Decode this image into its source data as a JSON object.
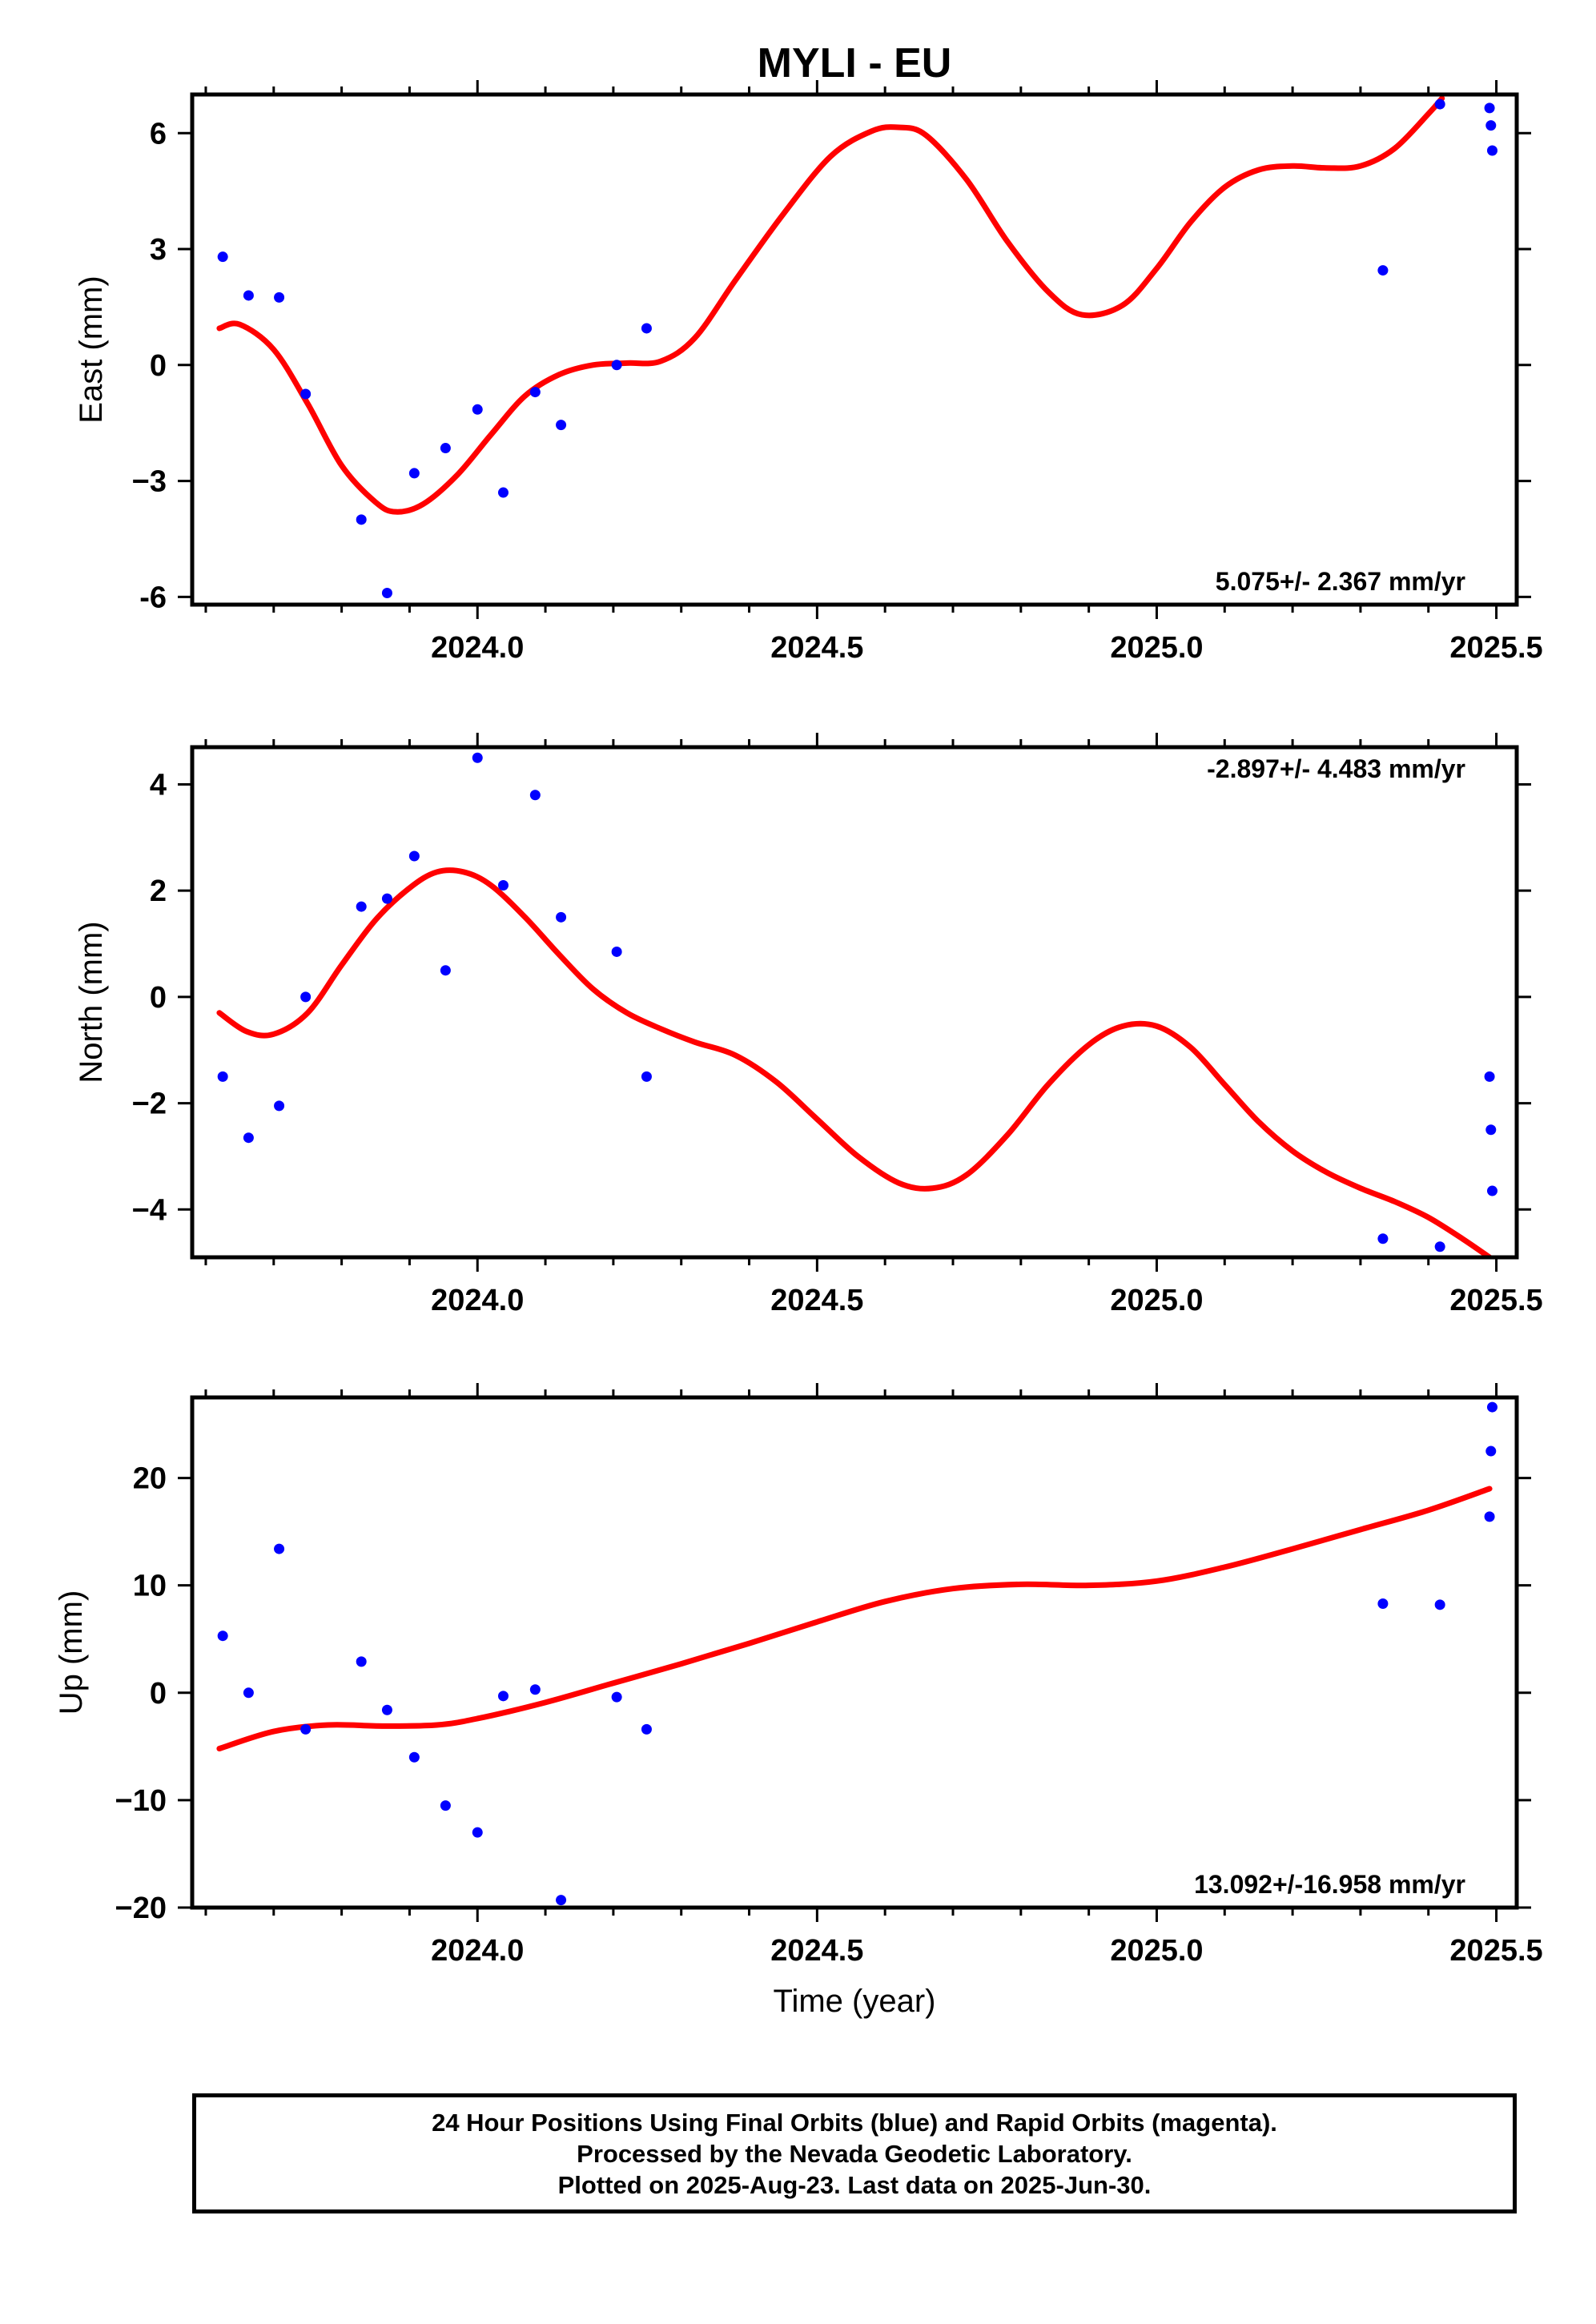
{
  "title": "MYLI - EU",
  "caption": {
    "line1": "24 Hour Positions Using Final Orbits (blue) and Rapid Orbits (magenta).",
    "line2": "Processed by the Nevada Geodetic Laboratory.",
    "line3": "Plotted on 2025-Aug-23. Last data on 2025-Jun-30."
  },
  "colors": {
    "final_orbits": "#0000ff",
    "fit_curve": "#ff0000",
    "frame": "#000000"
  },
  "chart_data": [
    {
      "type": "scatter",
      "id": "east",
      "ylabel": "East (mm)",
      "xlabel": "",
      "rate": "5.075+/- 2.367 mm/yr",
      "rate_position": "bottom-right",
      "xlim": [
        2023.58,
        2025.53
      ],
      "ylim": [
        -6.2,
        7.0
      ],
      "xticks": [
        2024.0,
        2024.5,
        2025.0,
        2025.5
      ],
      "xtick_labels": [
        "2024.0",
        "2024.5",
        "2025.0",
        "2025.5"
      ],
      "yticks": [
        -6,
        -3,
        0,
        3,
        6
      ],
      "ytick_labels": [
        "-6",
        "−3",
        "0",
        "3",
        "6"
      ],
      "grid": false,
      "points": {
        "x": [
          2023.625,
          2023.663,
          2023.708,
          2023.747,
          2023.829,
          2023.867,
          2023.907,
          2023.953,
          2024.0,
          2024.038,
          2024.085,
          2024.123,
          2024.205,
          2024.249,
          2025.333,
          2025.417,
          2025.49,
          2025.492,
          2025.494
        ],
        "y": [
          2.8,
          1.8,
          1.75,
          -0.75,
          -4.0,
          -5.9,
          -2.8,
          -2.15,
          -1.15,
          -3.3,
          -0.7,
          -1.55,
          0.0,
          0.95,
          2.45,
          6.75,
          6.65,
          6.2,
          5.55
        ]
      },
      "fit": {
        "x": [
          2023.62,
          2023.65,
          2023.7,
          2023.75,
          2023.8,
          2023.85,
          2023.88,
          2023.92,
          2023.97,
          2024.02,
          2024.07,
          2024.12,
          2024.17,
          2024.22,
          2024.27,
          2024.32,
          2024.38,
          2024.45,
          2024.52,
          2024.58,
          2024.62,
          2024.66,
          2024.72,
          2024.78,
          2024.84,
          2024.89,
          2024.95,
          2025.0,
          2025.05,
          2025.1,
          2025.15,
          2025.2,
          2025.25,
          2025.3,
          2025.35,
          2025.4,
          2025.42
        ],
        "y": [
          0.95,
          1.05,
          0.4,
          -1.0,
          -2.6,
          -3.55,
          -3.8,
          -3.6,
          -2.85,
          -1.8,
          -0.8,
          -0.25,
          0.0,
          0.05,
          0.1,
          0.7,
          2.2,
          3.9,
          5.4,
          6.05,
          6.15,
          5.95,
          4.8,
          3.2,
          1.9,
          1.3,
          1.55,
          2.5,
          3.7,
          4.6,
          5.05,
          5.15,
          5.1,
          5.15,
          5.6,
          6.5,
          6.9
        ]
      }
    },
    {
      "type": "scatter",
      "id": "north",
      "ylabel": "North (mm)",
      "xlabel": "",
      "rate": "-2.897+/- 4.483 mm/yr",
      "rate_position": "top-right",
      "xlim": [
        2023.58,
        2025.53
      ],
      "ylim": [
        -4.9,
        4.7
      ],
      "xticks": [
        2024.0,
        2024.5,
        2025.0,
        2025.5
      ],
      "xtick_labels": [
        "2024.0",
        "2024.5",
        "2025.0",
        "2025.5"
      ],
      "yticks": [
        -4,
        -2,
        0,
        2,
        4
      ],
      "ytick_labels": [
        "−4",
        "−2",
        "0",
        "2",
        "4"
      ],
      "grid": false,
      "points": {
        "x": [
          2023.625,
          2023.663,
          2023.708,
          2023.747,
          2023.829,
          2023.867,
          2023.907,
          2023.953,
          2024.0,
          2024.038,
          2024.085,
          2024.123,
          2024.205,
          2024.249,
          2025.333,
          2025.417,
          2025.49,
          2025.492,
          2025.494
        ],
        "y": [
          -1.5,
          -2.65,
          -2.05,
          0.0,
          1.7,
          1.85,
          2.65,
          0.5,
          4.5,
          2.1,
          3.8,
          1.5,
          0.85,
          -1.5,
          -4.55,
          -4.7,
          -1.5,
          -2.5,
          -3.65
        ]
      },
      "fit": {
        "x": [
          2023.62,
          2023.66,
          2023.7,
          2023.75,
          2023.8,
          2023.85,
          2023.9,
          2023.94,
          2023.98,
          2024.02,
          2024.07,
          2024.12,
          2024.17,
          2024.22,
          2024.27,
          2024.32,
          2024.38,
          2024.44,
          2024.5,
          2024.56,
          2024.62,
          2024.67,
          2024.72,
          2024.78,
          2024.84,
          2024.9,
          2024.95,
          2025.0,
          2025.05,
          2025.1,
          2025.15,
          2025.2,
          2025.25,
          2025.3,
          2025.35,
          2025.4,
          2025.45,
          2025.49
        ],
        "y": [
          -0.3,
          -0.65,
          -0.7,
          -0.3,
          0.6,
          1.45,
          2.05,
          2.35,
          2.35,
          2.1,
          1.5,
          0.8,
          0.15,
          -0.3,
          -0.6,
          -0.85,
          -1.1,
          -1.6,
          -2.3,
          -3.0,
          -3.5,
          -3.6,
          -3.35,
          -2.6,
          -1.65,
          -0.9,
          -0.55,
          -0.55,
          -0.95,
          -1.65,
          -2.35,
          -2.9,
          -3.3,
          -3.6,
          -3.85,
          -4.15,
          -4.55,
          -4.9
        ]
      }
    },
    {
      "type": "scatter",
      "id": "up",
      "ylabel": "Up (mm)",
      "xlabel": "Time (year)",
      "rate": "13.092+/-16.958 mm/yr",
      "rate_position": "bottom-right",
      "xlim": [
        2023.58,
        2025.53
      ],
      "ylim": [
        -20,
        27.5
      ],
      "xticks": [
        2024.0,
        2024.5,
        2025.0,
        2025.5
      ],
      "xtick_labels": [
        "2024.0",
        "2024.5",
        "2025.0",
        "2025.5"
      ],
      "yticks": [
        -20,
        -10,
        0,
        10,
        20
      ],
      "ytick_labels": [
        "−20",
        "−10",
        "0",
        "10",
        "20"
      ],
      "grid": false,
      "points": {
        "x": [
          2023.625,
          2023.663,
          2023.708,
          2023.747,
          2023.829,
          2023.867,
          2023.907,
          2023.953,
          2024.0,
          2024.038,
          2024.085,
          2024.123,
          2024.205,
          2024.249,
          2025.333,
          2025.417,
          2025.49,
          2025.492,
          2025.494
        ],
        "y": [
          5.3,
          0.0,
          13.4,
          -3.4,
          2.9,
          -1.6,
          -6.0,
          -10.5,
          -13.0,
          -0.3,
          0.3,
          -19.3,
          -0.4,
          -3.4,
          8.3,
          8.2,
          16.4,
          22.5,
          26.6
        ]
      },
      "fit": {
        "x": [
          2023.62,
          2023.7,
          2023.78,
          2023.86,
          2023.94,
          2024.0,
          2024.1,
          2024.2,
          2024.3,
          2024.4,
          2024.5,
          2024.6,
          2024.7,
          2024.8,
          2024.9,
          2025.0,
          2025.1,
          2025.2,
          2025.3,
          2025.4,
          2025.49
        ],
        "y": [
          -5.2,
          -3.6,
          -3.0,
          -3.1,
          -3.0,
          -2.4,
          -0.9,
          0.9,
          2.7,
          4.6,
          6.6,
          8.5,
          9.7,
          10.1,
          10.0,
          10.4,
          11.7,
          13.4,
          15.2,
          17.0,
          19.0
        ]
      }
    }
  ]
}
